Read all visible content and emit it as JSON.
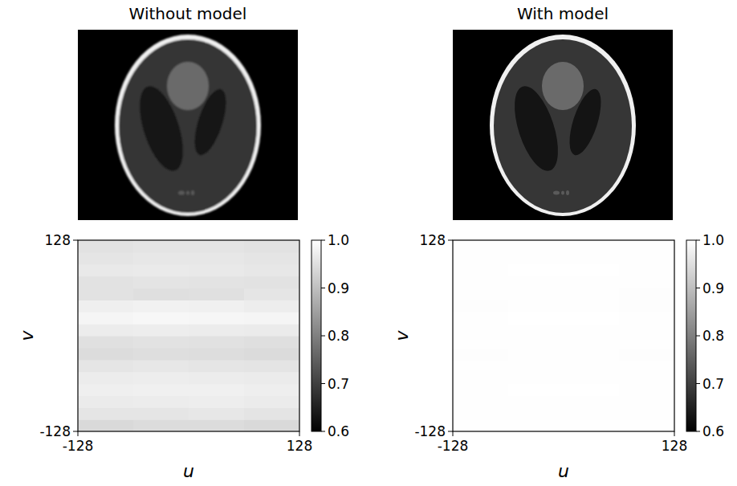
{
  "chart_data": [
    {
      "type": "heatmap",
      "title": "Without model",
      "x_label": "u",
      "y_label": "v",
      "xlim": [
        -128,
        128
      ],
      "ylim": [
        -128,
        128
      ],
      "xticks": [
        -128,
        128
      ],
      "yticks": [
        -128,
        128
      ],
      "x": [
        -96,
        -32,
        32,
        96
      ],
      "y": [
        -120,
        -104,
        -88,
        -72,
        -56,
        -40,
        -24,
        -8,
        8,
        24,
        40,
        56,
        72,
        88,
        104,
        120
      ],
      "cells": [
        [
          0.94,
          0.945,
          0.945,
          0.94
        ],
        [
          0.96,
          0.96,
          0.962,
          0.958
        ],
        [
          0.968,
          0.97,
          0.972,
          0.968
        ],
        [
          0.975,
          0.976,
          0.976,
          0.974
        ],
        [
          0.97,
          0.972,
          0.97,
          0.968
        ],
        [
          0.96,
          0.962,
          0.96,
          0.958
        ],
        [
          0.945,
          0.948,
          0.946,
          0.944
        ],
        [
          0.952,
          0.955,
          0.953,
          0.95
        ],
        [
          0.97,
          0.972,
          0.97,
          0.968
        ],
        [
          0.985,
          0.987,
          0.986,
          0.984
        ],
        [
          0.975,
          0.978,
          0.976,
          0.972
        ],
        [
          0.955,
          0.95,
          0.952,
          0.96
        ],
        [
          0.955,
          0.958,
          0.956,
          0.954
        ],
        [
          0.965,
          0.967,
          0.966,
          0.963
        ],
        [
          0.96,
          0.962,
          0.962,
          0.96
        ],
        [
          0.955,
          0.957,
          0.957,
          0.955
        ]
      ],
      "color_range": [
        0.6,
        1.0
      ],
      "color_ticks": [
        0.6,
        0.7,
        0.8,
        0.9,
        {
          "value": 1,
          "label": "1.0"
        }
      ]
    },
    {
      "type": "heatmap",
      "title": "With model",
      "x_label": "u",
      "y_label": "v",
      "xlim": [
        -128,
        128
      ],
      "ylim": [
        -128,
        128
      ],
      "xticks": [
        -128,
        128
      ],
      "yticks": [
        -128,
        128
      ],
      "x": [
        -96,
        -32,
        32,
        96
      ],
      "y": [
        -120,
        -104,
        -88,
        -72,
        -56,
        -40,
        -24,
        -8,
        8,
        24,
        40,
        56,
        72,
        88,
        104,
        120
      ],
      "cells": [
        [
          0.998,
          0.999,
          0.999,
          0.998
        ],
        [
          0.999,
          0.999,
          0.999,
          0.999
        ],
        [
          0.999,
          0.999,
          0.999,
          0.999
        ],
        [
          0.999,
          1.0,
          1.0,
          0.999
        ],
        [
          0.999,
          0.999,
          0.999,
          0.999
        ],
        [
          0.998,
          0.999,
          0.999,
          0.998
        ],
        [
          0.997,
          0.998,
          0.998,
          0.997
        ],
        [
          0.998,
          0.998,
          0.998,
          0.998
        ],
        [
          0.999,
          0.999,
          0.999,
          0.999
        ],
        [
          0.998,
          1.0,
          1.0,
          0.998
        ],
        [
          0.997,
          0.999,
          0.999,
          0.997
        ],
        [
          0.998,
          0.999,
          0.999,
          0.997
        ],
        [
          0.999,
          0.999,
          0.999,
          0.999
        ],
        [
          0.999,
          1.0,
          1.0,
          0.999
        ],
        [
          0.999,
          0.999,
          0.999,
          0.999
        ],
        [
          0.999,
          0.999,
          0.999,
          0.999
        ]
      ],
      "color_range": [
        0.6,
        1.0
      ],
      "color_ticks": [
        0.6,
        0.7,
        0.8,
        0.9,
        {
          "value": 1,
          "label": "1.0"
        }
      ]
    }
  ]
}
